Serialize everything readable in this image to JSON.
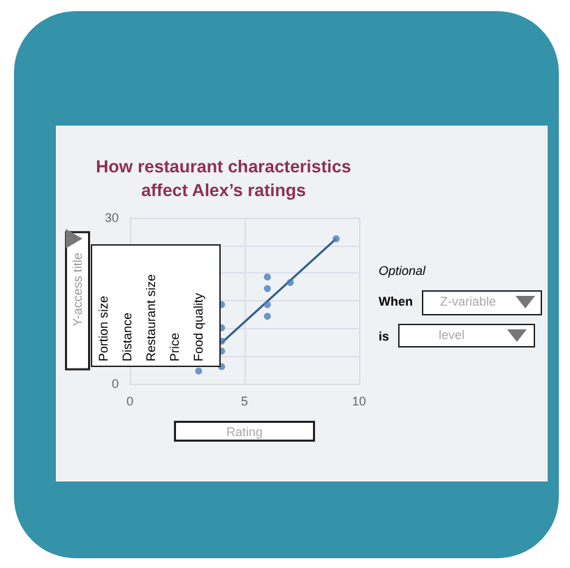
{
  "chart_data": {
    "type": "scatter",
    "title": "How restaurant characteristics\naffect Alex’s ratings",
    "xlabel": "Rating",
    "ylabel": "Y-access title",
    "xlim": [
      0,
      10
    ],
    "xticks": [
      0,
      5,
      10
    ],
    "ylim": [
      0,
      30
    ],
    "yticks": [
      0,
      {
        "value": 5,
        "label": null
      },
      {
        "value": 10,
        "label": null
      },
      {
        "value": 15,
        "label": null
      },
      {
        "value": 20,
        "label": null
      },
      {
        "value": 25,
        "label": null
      },
      30
    ],
    "grid": true,
    "marker": "circle",
    "series": [
      {
        "color": "#4a7ebb",
        "x": [
          3,
          4,
          4,
          4,
          4,
          4,
          6,
          6,
          6,
          6,
          7,
          9
        ],
        "values": [
          2.3,
          3.1,
          5.9,
          7.7,
          10.1,
          14.3,
          19.3,
          17.2,
          14.3,
          12.2,
          18.3,
          26.2
        ]
      },
      {
        "type": "line",
        "color": "#2f5f8f",
        "marker": "none",
        "x": [
          4,
          9
        ],
        "values": [
          7.4,
          26.2
        ]
      }
    ],
    "annotations": [
      "Portion size",
      "Distance",
      "Restaurant size",
      "Price",
      "Food quality",
      "Optional",
      "When",
      "Z-variable",
      "is",
      "level"
    ]
  }
}
